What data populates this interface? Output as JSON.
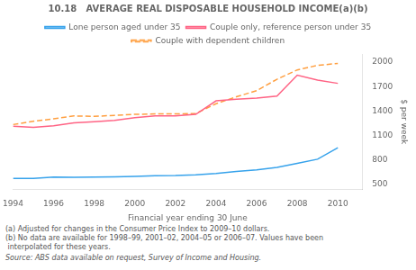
{
  "chart_data": {
    "type": "line",
    "title": "10.18   AVERAGE REAL DISPOSABLE HOUSEHOLD INCOME(a)(b)",
    "x_label": "Financial year ending 30 June",
    "y_label": "$ per week",
    "x": [
      1994,
      1995,
      1996,
      1997,
      1998,
      1999,
      2000,
      2001,
      2002,
      2003,
      2004,
      2005,
      2006,
      2007,
      2008,
      2009,
      2010
    ],
    "series": [
      {
        "name": "Lone person aged under 35",
        "line_style": "solid",
        "values": [
          573,
          575,
          590,
          588,
          590,
          593,
          600,
          608,
          610,
          618,
          635,
          660,
          680,
          710,
          760,
          810,
          950
        ]
      },
      {
        "name": "Couple only, reference person under 35",
        "line_style": "solid",
        "values": [
          1215,
          1200,
          1220,
          1255,
          1270,
          1285,
          1320,
          1340,
          1340,
          1360,
          1525,
          1545,
          1560,
          1585,
          1840,
          1780,
          1740
        ]
      },
      {
        "name": "Couple with dependent children",
        "line_style": "dashed",
        "values": [
          1235,
          1275,
          1305,
          1340,
          1335,
          1348,
          1360,
          1365,
          1365,
          1370,
          1490,
          1575,
          1650,
          1790,
          1905,
          1960,
          1985
        ]
      }
    ],
    "xlim": [
      1994,
      2011.2
    ],
    "xticks": [
      1994,
      1996,
      1998,
      2000,
      2002,
      2004,
      2006,
      2008,
      2010
    ],
    "ylim": [
      440,
      2100
    ],
    "yticks": [
      500,
      800,
      1100,
      1400,
      1700,
      2000
    ],
    "grid": false,
    "legend": "top",
    "annotations": [
      "(a) Adjusted for changes in the Consumer Price Index to 2009–10 dollars.",
      "(b) No data are available for 1998–99, 2001–02, 2004–05 or 2006–07. Values have been\n interpolated for these years.",
      "Source: ABS data available on request, Survey of Income and Housing."
    ]
  }
}
